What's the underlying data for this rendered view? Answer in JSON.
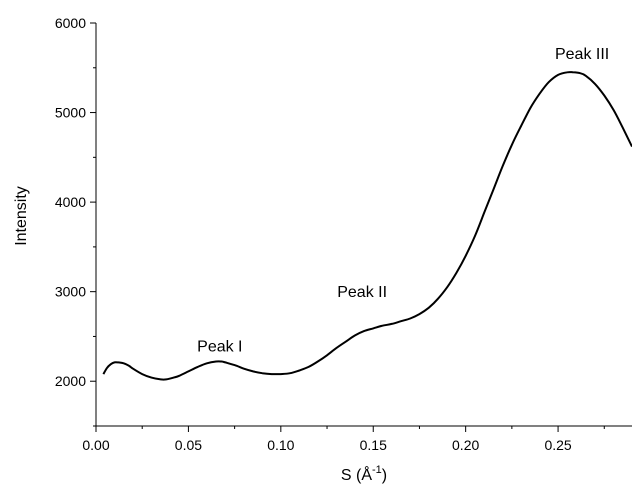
{
  "chart_data": {
    "type": "line",
    "title": "",
    "xlabel": "S (Å",
    "xlabel_sup": "-1",
    "xlabel_close": ")",
    "ylabel": "Intensity",
    "xlim": [
      0.0,
      0.29
    ],
    "ylim": [
      1500,
      6000
    ],
    "x_ticks": [
      0.0,
      0.05,
      0.1,
      0.15,
      0.2,
      0.25
    ],
    "x_tick_labels": [
      "0.00",
      "0.05",
      "0.10",
      "0.15",
      "0.20",
      "0.25"
    ],
    "y_ticks": [
      2000,
      3000,
      4000,
      5000,
      6000
    ],
    "y_tick_labels": [
      "2000",
      "3000",
      "4000",
      "5000",
      "6000"
    ],
    "grid": false,
    "line_color": "#000000",
    "series": [
      {
        "x": [
          0.004,
          0.006,
          0.008,
          0.01,
          0.012,
          0.015,
          0.018,
          0.02,
          0.025,
          0.03,
          0.035,
          0.038,
          0.042,
          0.045,
          0.05,
          0.055,
          0.06,
          0.065,
          0.068,
          0.07,
          0.075,
          0.08,
          0.085,
          0.09,
          0.095,
          0.1,
          0.105,
          0.11,
          0.115,
          0.12,
          0.125,
          0.13,
          0.135,
          0.14,
          0.145,
          0.15,
          0.155,
          0.16,
          0.165,
          0.17,
          0.175,
          0.18,
          0.185,
          0.19,
          0.195,
          0.2,
          0.205,
          0.21,
          0.215,
          0.22,
          0.225,
          0.23,
          0.235,
          0.24,
          0.245,
          0.25,
          0.255,
          0.258,
          0.262,
          0.265,
          0.27,
          0.275,
          0.28,
          0.285,
          0.29
        ],
        "y": [
          2080,
          2150,
          2190,
          2210,
          2210,
          2200,
          2170,
          2140,
          2080,
          2040,
          2020,
          2020,
          2040,
          2060,
          2110,
          2160,
          2200,
          2220,
          2220,
          2210,
          2180,
          2140,
          2110,
          2090,
          2080,
          2080,
          2090,
          2120,
          2160,
          2220,
          2290,
          2370,
          2440,
          2510,
          2560,
          2590,
          2620,
          2640,
          2670,
          2700,
          2750,
          2820,
          2920,
          3050,
          3210,
          3400,
          3620,
          3880,
          4140,
          4400,
          4640,
          4850,
          5050,
          5210,
          5340,
          5420,
          5450,
          5450,
          5440,
          5410,
          5320,
          5190,
          5030,
          4830,
          4620
        ]
      }
    ],
    "annotations": [
      {
        "text": "Peak I",
        "x": 0.067,
        "y": 2330
      },
      {
        "text": "Peak II",
        "x": 0.144,
        "y": 2940
      },
      {
        "text": "Peak III",
        "x": 0.263,
        "y": 5600
      }
    ]
  }
}
